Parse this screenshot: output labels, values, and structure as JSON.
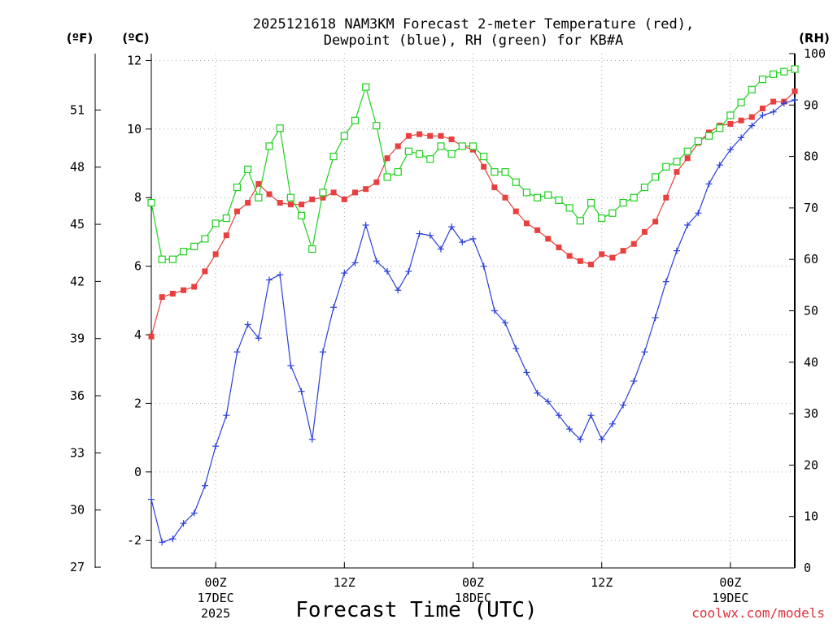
{
  "chart_data": {
    "type": "line",
    "title_line1": "2025121618 NAM3KM Forecast 2-meter Temperature (red),",
    "title_line2": "Dewpoint (blue), RH (green) for KB#A",
    "xlabel": "Forecast Time (UTC)",
    "credit": "coolwx.com/models",
    "units": {
      "fahrenheit": "(ºF)",
      "celsius": "(ºC)",
      "rh": "(RH)"
    },
    "left_c_ticks": [
      "-2",
      "0",
      "2",
      "4",
      "6",
      "8",
      "10",
      "12"
    ],
    "left_f_ticks": [
      "27",
      "30",
      "33",
      "36",
      "39",
      "42",
      "45",
      "48",
      "51"
    ],
    "right_rh_ticks": [
      "0",
      "10",
      "20",
      "30",
      "40",
      "50",
      "60",
      "70",
      "80",
      "90",
      "100"
    ],
    "x_ticks": [
      {
        "hour": 6,
        "label": "00Z",
        "sub1": "17DEC",
        "sub2": "2025"
      },
      {
        "hour": 18,
        "label": "12Z",
        "sub1": "",
        "sub2": ""
      },
      {
        "hour": 30,
        "label": "00Z",
        "sub1": "18DEC",
        "sub2": ""
      },
      {
        "hour": 42,
        "label": "12Z",
        "sub1": "",
        "sub2": ""
      },
      {
        "hour": 54,
        "label": "00Z",
        "sub1": "19DEC",
        "sub2": ""
      }
    ],
    "hour_range": [
      0,
      60
    ],
    "temp_range_c": [
      -2.8,
      12.2
    ],
    "rh_range": [
      0,
      100
    ],
    "series": [
      {
        "name": "2-meter Temperature",
        "unit": "°C",
        "color": "#e8403e",
        "marker": "filled-square",
        "hours": [
          0,
          1,
          2,
          3,
          4,
          5,
          6,
          7,
          8,
          9,
          10,
          11,
          12,
          13,
          14,
          15,
          16,
          17,
          18,
          19,
          20,
          21,
          22,
          23,
          24,
          25,
          26,
          27,
          28,
          29,
          30,
          31,
          32,
          33,
          34,
          35,
          36,
          37,
          38,
          39,
          40,
          41,
          42,
          43,
          44,
          45,
          46,
          47,
          48,
          49,
          50,
          51,
          52,
          53,
          54,
          55,
          56,
          57,
          58,
          59,
          60
        ],
        "values": [
          3.95,
          5.1,
          5.2,
          5.3,
          5.4,
          5.85,
          6.35,
          6.9,
          7.6,
          7.85,
          8.4,
          8.1,
          7.85,
          7.8,
          7.8,
          7.95,
          8.0,
          8.15,
          7.95,
          8.15,
          8.25,
          8.45,
          9.15,
          9.5,
          9.8,
          9.85,
          9.8,
          9.8,
          9.7,
          9.5,
          9.4,
          8.9,
          8.3,
          8.0,
          7.6,
          7.25,
          7.05,
          6.8,
          6.55,
          6.3,
          6.15,
          6.05,
          6.35,
          6.25,
          6.45,
          6.65,
          7.0,
          7.3,
          8.0,
          8.75,
          9.15,
          9.6,
          9.9,
          10.1,
          10.15,
          10.25,
          10.35,
          10.6,
          10.8,
          10.8,
          11.1
        ]
      },
      {
        "name": "Dewpoint",
        "unit": "°C",
        "color": "#2a3fd8",
        "marker": "plus",
        "hours": [
          0,
          1,
          2,
          3,
          4,
          5,
          6,
          7,
          8,
          9,
          10,
          11,
          12,
          13,
          14,
          15,
          16,
          17,
          18,
          19,
          20,
          21,
          22,
          23,
          24,
          25,
          26,
          27,
          28,
          29,
          30,
          31,
          32,
          33,
          34,
          35,
          36,
          37,
          38,
          39,
          40,
          41,
          42,
          43,
          44,
          45,
          46,
          47,
          48,
          49,
          50,
          51,
          52,
          53,
          54,
          55,
          56,
          57,
          58,
          59,
          60
        ],
        "values": [
          -0.8,
          -2.05,
          -1.95,
          -1.5,
          -1.2,
          -0.4,
          0.75,
          1.65,
          3.5,
          4.3,
          3.9,
          5.6,
          5.75,
          3.1,
          2.35,
          0.95,
          3.5,
          4.8,
          5.8,
          6.1,
          7.2,
          6.15,
          5.85,
          5.3,
          5.85,
          6.95,
          6.9,
          6.5,
          7.15,
          6.7,
          6.8,
          6.0,
          4.7,
          4.35,
          3.6,
          2.9,
          2.3,
          2.05,
          1.65,
          1.25,
          0.95,
          1.65,
          0.95,
          1.4,
          1.95,
          2.65,
          3.5,
          4.5,
          5.55,
          6.45,
          7.2,
          7.55,
          8.4,
          8.95,
          9.4,
          9.75,
          10.1,
          10.4,
          10.5,
          10.75,
          10.85
        ]
      },
      {
        "name": "RH",
        "unit": "%",
        "color": "#1ed01e",
        "marker": "open-square",
        "hours": [
          0,
          1,
          2,
          3,
          4,
          5,
          6,
          7,
          8,
          9,
          10,
          11,
          12,
          13,
          14,
          15,
          16,
          17,
          18,
          19,
          20,
          21,
          22,
          23,
          24,
          25,
          26,
          27,
          28,
          29,
          30,
          31,
          32,
          33,
          34,
          35,
          36,
          37,
          38,
          39,
          40,
          41,
          42,
          43,
          44,
          45,
          46,
          47,
          48,
          49,
          50,
          51,
          52,
          53,
          54,
          55,
          56,
          57,
          58,
          59,
          60
        ],
        "values": [
          71,
          60,
          60,
          61.5,
          62.5,
          64,
          67,
          68,
          74,
          77.5,
          72,
          82,
          85.5,
          72,
          68.5,
          62,
          73,
          80,
          84,
          87,
          93.5,
          86,
          76,
          77,
          81,
          80.5,
          79.5,
          82,
          80.5,
          82,
          82,
          80,
          77,
          77,
          75,
          73,
          72,
          72.5,
          71.5,
          70,
          67.5,
          71,
          68,
          69,
          71,
          72,
          74,
          76,
          78,
          79,
          81,
          83,
          84,
          85.5,
          88,
          90.5,
          93,
          95,
          96,
          96.5,
          97
        ]
      }
    ]
  }
}
